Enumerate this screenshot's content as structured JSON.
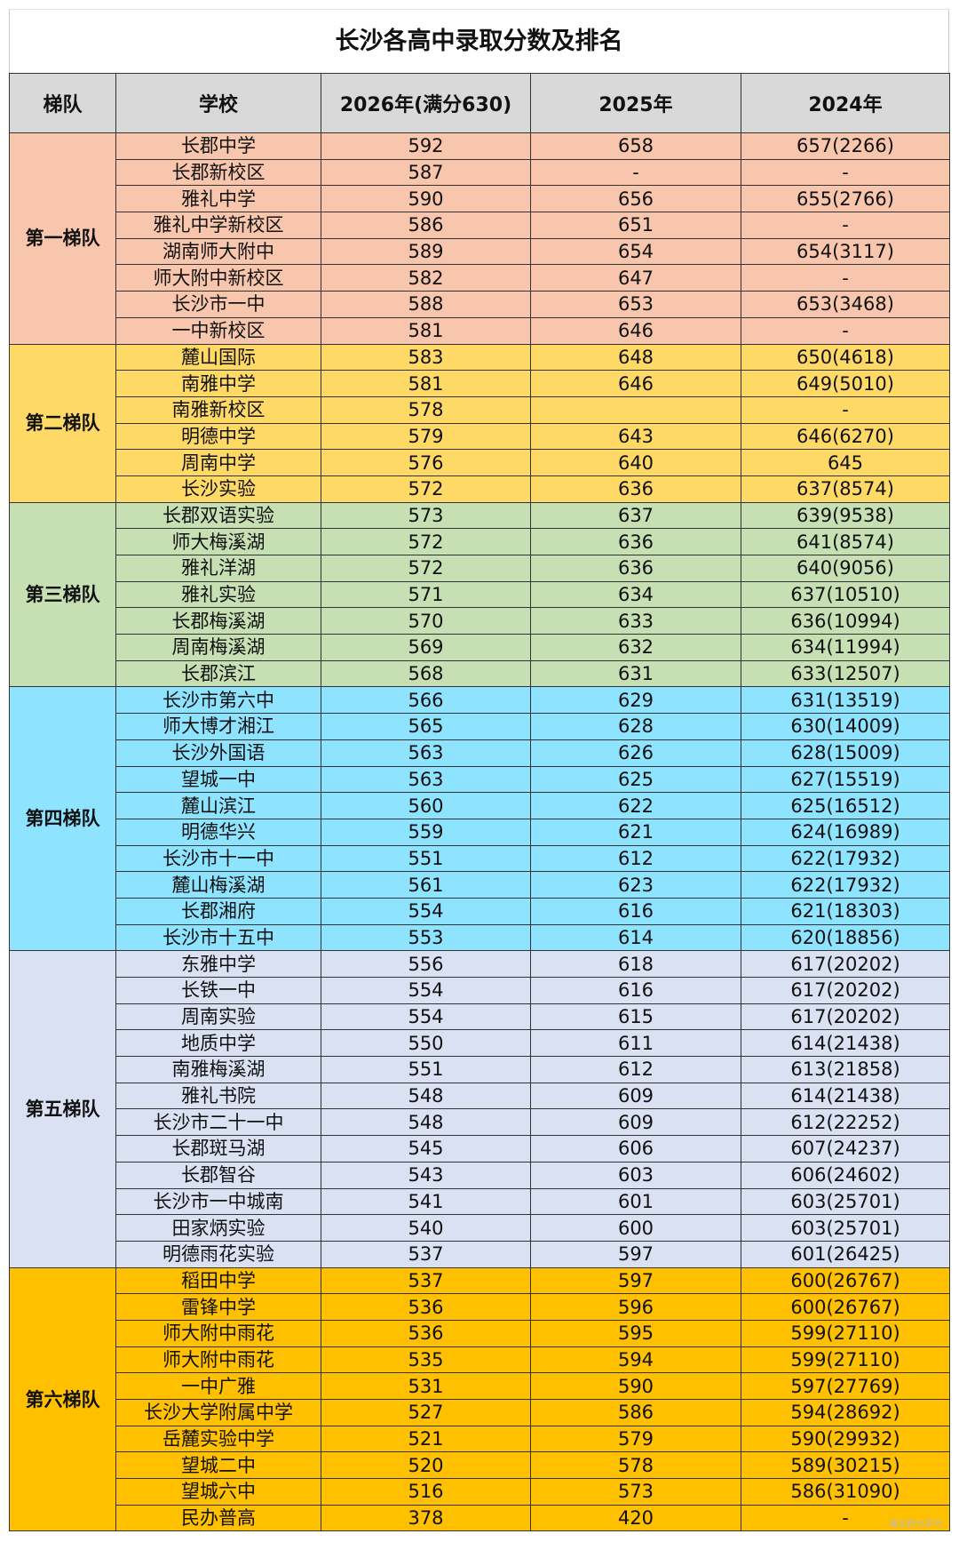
{
  "title": "长沙各高中录取分数及排名",
  "headers": [
    "梯队",
    "学校",
    "2026年(满分630)",
    "2025年",
    "2024年"
  ],
  "watermark": "湘北群分享号",
  "tiers": [
    {
      "name": "第一梯队",
      "color": "#f7c6ac",
      "rows": [
        [
          "长郡中学",
          "592",
          "658",
          "657(2266)"
        ],
        [
          "长郡新校区",
          "587",
          "-",
          "-"
        ],
        [
          "雅礼中学",
          "590",
          "656",
          "655(2766)"
        ],
        [
          "雅礼中学新校区",
          "586",
          "651",
          "-"
        ],
        [
          "湖南师大附中",
          "589",
          "654",
          "654(3117)"
        ],
        [
          "师大附中新校区",
          "582",
          "647",
          "-"
        ],
        [
          "长沙市一中",
          "588",
          "653",
          "653(3468)"
        ],
        [
          "一中新校区",
          "581",
          "646",
          "-"
        ]
      ]
    },
    {
      "name": "第二梯队",
      "color": "#ffd966",
      "rows": [
        [
          "麓山国际",
          "583",
          "648",
          "650(4618)"
        ],
        [
          "南雅中学",
          "581",
          "646",
          "649(5010)"
        ],
        [
          "南雅新校区",
          "578",
          "",
          "-"
        ],
        [
          "明德中学",
          "579",
          "643",
          "646(6270)"
        ],
        [
          "周南中学",
          "576",
          "640",
          "645"
        ],
        [
          "长沙实验",
          "572",
          "636",
          "637(8574)"
        ]
      ]
    },
    {
      "name": "第三梯队",
      "color": "#c6e0b4",
      "rows": [
        [
          "长郡双语实验",
          "573",
          "637",
          "639(9538)"
        ],
        [
          "师大梅溪湖",
          "572",
          "636",
          "641(8574)"
        ],
        [
          "雅礼洋湖",
          "572",
          "636",
          "640(9056)"
        ],
        [
          "雅礼实验",
          "571",
          "634",
          "637(10510)"
        ],
        [
          "长郡梅溪湖",
          "570",
          "633",
          "636(10994)"
        ],
        [
          "周南梅溪湖",
          "569",
          "632",
          "634(11994)"
        ],
        [
          "长郡滨江",
          "568",
          "631",
          "633(12507)"
        ]
      ]
    },
    {
      "name": "第四梯队",
      "color": "#8ee3ff",
      "rows": [
        [
          "长沙市第六中",
          "566",
          "629",
          "631(13519)"
        ],
        [
          "师大博才湘江",
          "565",
          "628",
          "630(14009)"
        ],
        [
          "长沙外国语",
          "563",
          "626",
          "628(15009)"
        ],
        [
          "望城一中",
          "563",
          "625",
          "627(15519)"
        ],
        [
          "麓山滨江",
          "560",
          "622",
          "625(16512)"
        ],
        [
          "明德华兴",
          "559",
          "621",
          "624(16989)"
        ],
        [
          "长沙市十一中",
          "551",
          "612",
          "622(17932)"
        ],
        [
          "麓山梅溪湖",
          "561",
          "623",
          "622(17932)"
        ],
        [
          "长郡湘府",
          "554",
          "616",
          "621(18303)"
        ],
        [
          "长沙市十五中",
          "553",
          "614",
          "620(18856)"
        ]
      ]
    },
    {
      "name": "第五梯队",
      "color": "#d9e1f2",
      "rows": [
        [
          "东雅中学",
          "556",
          "618",
          "617(20202)"
        ],
        [
          "长铁一中",
          "554",
          "616",
          "617(20202)"
        ],
        [
          "周南实验",
          "554",
          "615",
          "617(20202)"
        ],
        [
          "地质中学",
          "550",
          "611",
          "614(21438)"
        ],
        [
          "南雅梅溪湖",
          "551",
          "612",
          "613(21858)"
        ],
        [
          "雅礼书院",
          "548",
          "609",
          "614(21438)"
        ],
        [
          "长沙市二十一中",
          "548",
          "609",
          "612(22252)"
        ],
        [
          "长郡斑马湖",
          "545",
          "606",
          "607(24237)"
        ],
        [
          "长郡智谷",
          "543",
          "603",
          "606(24602)"
        ],
        [
          "长沙市一中城南",
          "541",
          "601",
          "603(25701)"
        ],
        [
          "田家炳实验",
          "540",
          "600",
          "603(25701)"
        ],
        [
          "明德雨花实验",
          "537",
          "597",
          "601(26425)"
        ]
      ]
    },
    {
      "name": "第六梯队",
      "color": "#ffc000",
      "rows": [
        [
          "稻田中学",
          "537",
          "597",
          "600(26767)"
        ],
        [
          "雷锋中学",
          "536",
          "596",
          "600(26767)"
        ],
        [
          "师大附中雨花",
          "536",
          "595",
          "599(27110)"
        ],
        [
          "师大附中雨花",
          "535",
          "594",
          "599(27110)"
        ],
        [
          "一中广雅",
          "531",
          "590",
          "597(27769)"
        ],
        [
          "长沙大学附属中学",
          "527",
          "586",
          "594(28692)"
        ],
        [
          "岳麓实验中学",
          "521",
          "579",
          "590(29932)"
        ],
        [
          "望城二中",
          "520",
          "578",
          "589(30215)"
        ],
        [
          "望城六中",
          "516",
          "573",
          "586(31090)"
        ],
        [
          "民办普高",
          "378",
          "420",
          "-"
        ]
      ]
    }
  ]
}
